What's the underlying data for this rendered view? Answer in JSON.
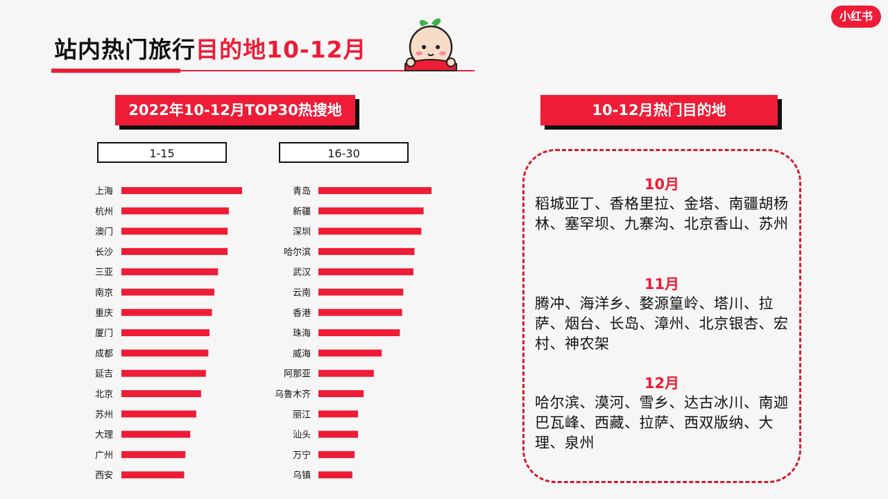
{
  "header": {
    "title_black": "站内热门旅行",
    "title_red": "目的地10-12月",
    "logo_text": "小红书"
  },
  "chart_data": {
    "type": "bar",
    "title": "2022年10-12月TOP30热搜地",
    "orientation": "horizontal",
    "groups": [
      {
        "label": "1-15",
        "categories": [
          "上海",
          "杭州",
          "澳门",
          "长沙",
          "三亚",
          "南京",
          "重庆",
          "厦门",
          "成都",
          "延吉",
          "北京",
          "苏州",
          "大理",
          "广州",
          "西安"
        ],
        "values": [
          100,
          89,
          88,
          88,
          80,
          77,
          75,
          73,
          72,
          70,
          66,
          62,
          57,
          53,
          52
        ]
      },
      {
        "label": "16-30",
        "categories": [
          "青岛",
          "新疆",
          "深圳",
          "哈尔滨",
          "武汉",
          "云南",
          "香港",
          "珠海",
          "威海",
          "阿那亚",
          "乌鲁木齐",
          "丽江",
          "汕头",
          "万宁",
          "乌镇"
        ],
        "values": [
          100,
          93,
          91,
          85,
          84,
          75,
          74,
          72,
          56,
          49,
          40,
          35,
          35,
          32,
          30
        ]
      }
    ],
    "bar_color": "#ee1c36"
  },
  "destinations": {
    "title": "10-12月热门目的地",
    "months": [
      {
        "label": "10月",
        "places": "稻城亚丁、香格里拉、金塔、南疆胡杨林、塞罕坝、九寨沟、北京香山、苏州"
      },
      {
        "label": "11月",
        "places": "腾冲、海洋乡、婺源篁岭、塔川、拉萨、烟台、长岛、漳州、北京银杏、宏村、神农架"
      },
      {
        "label": "12月",
        "places": "哈尔滨、漠河、雪乡、达古冰川、南迦巴瓦峰、西藏、拉萨、西双版纳、大理、泉州"
      }
    ]
  }
}
